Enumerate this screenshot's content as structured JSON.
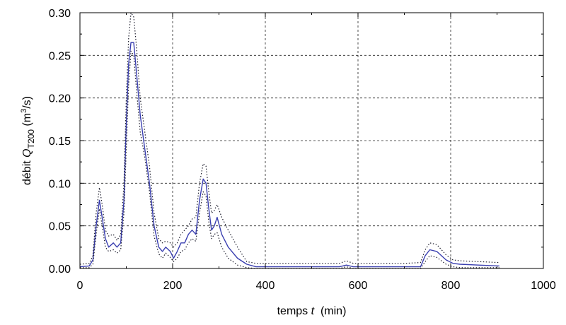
{
  "chart_data": {
    "type": "line",
    "xlabel": {
      "prefix": "temps ",
      "var": "t",
      "suffix": "  (min)"
    },
    "ylabel": {
      "prefix": "débit ",
      "var": "Q",
      "sub": "T200",
      "mid": " (m",
      "sup": "3",
      "suffix": "/s)"
    },
    "xlim": [
      0,
      1000
    ],
    "ylim": [
      0,
      0.3
    ],
    "xticks": [
      0,
      200,
      400,
      600,
      800,
      1000
    ],
    "xtick_labels": [
      "0",
      "200",
      "400",
      "600",
      "800",
      "1000"
    ],
    "yticks": [
      0,
      0.05,
      0.1,
      0.15,
      0.2,
      0.25,
      0.3
    ],
    "ytick_labels": [
      "0.00",
      "0.05",
      "0.10",
      "0.15",
      "0.20",
      "0.25",
      "0.30"
    ],
    "grid": true,
    "legend": "none",
    "series": [
      {
        "style": "solid",
        "color": "#3a3fb0",
        "points": [
          [
            0,
            0.002
          ],
          [
            20,
            0.003
          ],
          [
            28,
            0.01
          ],
          [
            35,
            0.05
          ],
          [
            42,
            0.08
          ],
          [
            48,
            0.06
          ],
          [
            55,
            0.035
          ],
          [
            62,
            0.025
          ],
          [
            72,
            0.03
          ],
          [
            80,
            0.025
          ],
          [
            88,
            0.03
          ],
          [
            95,
            0.08
          ],
          [
            100,
            0.17
          ],
          [
            105,
            0.24
          ],
          [
            110,
            0.265
          ],
          [
            116,
            0.265
          ],
          [
            122,
            0.23
          ],
          [
            130,
            0.18
          ],
          [
            140,
            0.14
          ],
          [
            150,
            0.1
          ],
          [
            160,
            0.05
          ],
          [
            170,
            0.025
          ],
          [
            178,
            0.02
          ],
          [
            185,
            0.025
          ],
          [
            195,
            0.02
          ],
          [
            202,
            0.012
          ],
          [
            210,
            0.02
          ],
          [
            218,
            0.03
          ],
          [
            226,
            0.03
          ],
          [
            234,
            0.04
          ],
          [
            242,
            0.045
          ],
          [
            250,
            0.04
          ],
          [
            258,
            0.08
          ],
          [
            266,
            0.105
          ],
          [
            272,
            0.1
          ],
          [
            278,
            0.07
          ],
          [
            284,
            0.045
          ],
          [
            290,
            0.05
          ],
          [
            296,
            0.06
          ],
          [
            306,
            0.04
          ],
          [
            320,
            0.025
          ],
          [
            340,
            0.012
          ],
          [
            360,
            0.005
          ],
          [
            380,
            0.002
          ],
          [
            450,
            0.002
          ],
          [
            520,
            0.002
          ],
          [
            560,
            0.002
          ],
          [
            575,
            0.004
          ],
          [
            590,
            0.002
          ],
          [
            650,
            0.002
          ],
          [
            700,
            0.002
          ],
          [
            735,
            0.002
          ],
          [
            745,
            0.015
          ],
          [
            755,
            0.022
          ],
          [
            770,
            0.02
          ],
          [
            790,
            0.01
          ],
          [
            805,
            0.006
          ],
          [
            820,
            0.005
          ],
          [
            860,
            0.004
          ],
          [
            905,
            0.003
          ]
        ]
      },
      {
        "style": "dotted",
        "color": "#1a1a2a",
        "points": [
          [
            0,
            0.005
          ],
          [
            20,
            0.006
          ],
          [
            28,
            0.015
          ],
          [
            35,
            0.065
          ],
          [
            42,
            0.095
          ],
          [
            48,
            0.075
          ],
          [
            55,
            0.045
          ],
          [
            62,
            0.038
          ],
          [
            72,
            0.04
          ],
          [
            80,
            0.033
          ],
          [
            88,
            0.04
          ],
          [
            95,
            0.1
          ],
          [
            100,
            0.2
          ],
          [
            105,
            0.27
          ],
          [
            110,
            0.3
          ],
          [
            116,
            0.295
          ],
          [
            122,
            0.26
          ],
          [
            130,
            0.2
          ],
          [
            140,
            0.16
          ],
          [
            150,
            0.12
          ],
          [
            160,
            0.065
          ],
          [
            170,
            0.035
          ],
          [
            178,
            0.03
          ],
          [
            185,
            0.032
          ],
          [
            195,
            0.03
          ],
          [
            202,
            0.025
          ],
          [
            210,
            0.03
          ],
          [
            218,
            0.04
          ],
          [
            226,
            0.045
          ],
          [
            234,
            0.05
          ],
          [
            242,
            0.058
          ],
          [
            250,
            0.06
          ],
          [
            258,
            0.1
          ],
          [
            266,
            0.123
          ],
          [
            272,
            0.12
          ],
          [
            278,
            0.09
          ],
          [
            284,
            0.065
          ],
          [
            290,
            0.068
          ],
          [
            296,
            0.075
          ],
          [
            306,
            0.06
          ],
          [
            320,
            0.045
          ],
          [
            340,
            0.025
          ],
          [
            360,
            0.008
          ],
          [
            380,
            0.006
          ],
          [
            450,
            0.006
          ],
          [
            520,
            0.006
          ],
          [
            560,
            0.006
          ],
          [
            575,
            0.009
          ],
          [
            590,
            0.006
          ],
          [
            650,
            0.006
          ],
          [
            700,
            0.006
          ],
          [
            735,
            0.007
          ],
          [
            745,
            0.022
          ],
          [
            755,
            0.03
          ],
          [
            770,
            0.028
          ],
          [
            790,
            0.016
          ],
          [
            805,
            0.01
          ],
          [
            820,
            0.009
          ],
          [
            860,
            0.008
          ],
          [
            905,
            0.007
          ]
        ]
      },
      {
        "style": "dotted",
        "color": "#1a1a2a",
        "points": [
          [
            0,
            0.001
          ],
          [
            20,
            0.001
          ],
          [
            28,
            0.005
          ],
          [
            35,
            0.04
          ],
          [
            42,
            0.07
          ],
          [
            48,
            0.05
          ],
          [
            55,
            0.025
          ],
          [
            62,
            0.02
          ],
          [
            72,
            0.022
          ],
          [
            80,
            0.018
          ],
          [
            88,
            0.022
          ],
          [
            95,
            0.065
          ],
          [
            100,
            0.14
          ],
          [
            105,
            0.215
          ],
          [
            110,
            0.255
          ],
          [
            116,
            0.25
          ],
          [
            122,
            0.21
          ],
          [
            130,
            0.16
          ],
          [
            140,
            0.13
          ],
          [
            150,
            0.09
          ],
          [
            160,
            0.038
          ],
          [
            170,
            0.017
          ],
          [
            178,
            0.012
          ],
          [
            185,
            0.018
          ],
          [
            195,
            0.013
          ],
          [
            202,
            0.008
          ],
          [
            210,
            0.012
          ],
          [
            218,
            0.02
          ],
          [
            226,
            0.022
          ],
          [
            234,
            0.03
          ],
          [
            242,
            0.035
          ],
          [
            250,
            0.032
          ],
          [
            258,
            0.065
          ],
          [
            266,
            0.09
          ],
          [
            272,
            0.085
          ],
          [
            278,
            0.055
          ],
          [
            284,
            0.035
          ],
          [
            290,
            0.04
          ],
          [
            296,
            0.042
          ],
          [
            306,
            0.025
          ],
          [
            320,
            0.012
          ],
          [
            340,
            0.004
          ],
          [
            360,
            0.001
          ],
          [
            380,
            0.0
          ],
          [
            450,
            0.0
          ],
          [
            520,
            0.0
          ],
          [
            560,
            0.0
          ],
          [
            575,
            0.002
          ],
          [
            590,
            0.0
          ],
          [
            650,
            0.0
          ],
          [
            700,
            0.0
          ],
          [
            735,
            0.0
          ],
          [
            745,
            0.008
          ],
          [
            755,
            0.015
          ],
          [
            770,
            0.013
          ],
          [
            790,
            0.005
          ],
          [
            805,
            0.002
          ],
          [
            820,
            0.001
          ],
          [
            860,
            0.001
          ],
          [
            905,
            0.001
          ]
        ]
      }
    ]
  }
}
